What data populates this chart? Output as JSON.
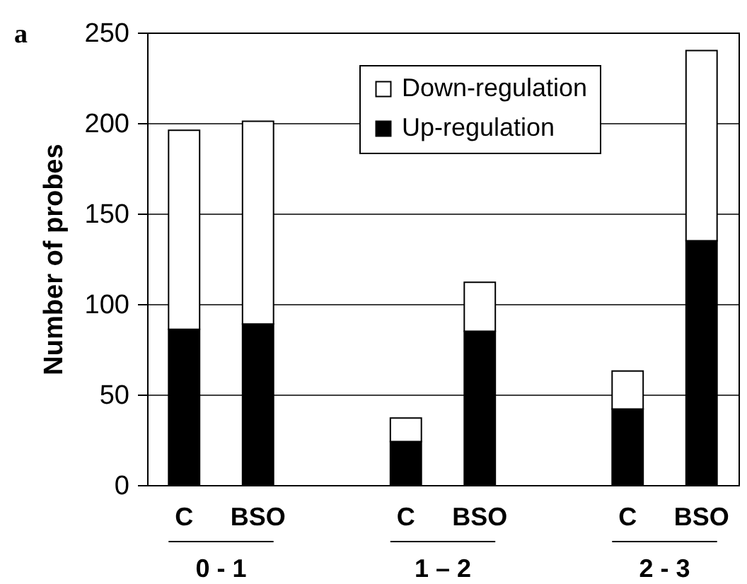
{
  "chart_data": {
    "type": "bar",
    "stacked": true,
    "ylabel": "Number of probes",
    "categories": [
      "C",
      "BSO",
      "C",
      "BSO",
      "C",
      "BSO"
    ],
    "series": [
      {
        "name": "Up-regulation",
        "color": "#000000",
        "values": [
          86,
          89,
          24,
          85,
          42,
          135
        ]
      },
      {
        "name": "Down-regulation",
        "color": "#ffffff",
        "values": [
          110,
          112,
          13,
          27,
          21,
          105
        ]
      }
    ],
    "ylim": [
      0,
      250
    ],
    "yticks": [
      0,
      50,
      100,
      150,
      200,
      250
    ],
    "grid": "y",
    "legend": "top right",
    "annotations": [
      "a",
      "0 - 1",
      "1 – 2",
      "2 - 3"
    ]
  }
}
